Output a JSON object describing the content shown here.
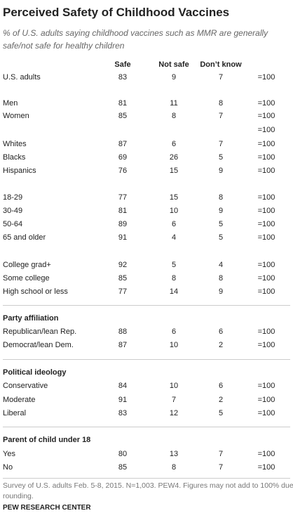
{
  "header": {
    "title": "Perceived Safety of Childhood Vaccines",
    "subtitle": [
      "% of U.S. adults saying childhood vaccines such as MMR are generally",
      "safe/not safe for healthy children"
    ]
  },
  "table": {
    "columns": [
      "Safe",
      "Not safe",
      "Don’t know"
    ],
    "rows": [
      {
        "label": "U.S. adults",
        "cells": [
          83,
          9,
          7
        ],
        "total": "=100"
      },
      {
        "label": "Men",
        "cells": [
          81,
          11,
          8
        ],
        "total": "=100"
      },
      {
        "label": "Women",
        "cells": [
          85,
          8,
          7
        ],
        "total": "=100"
      },
      {
        "total": "=100"
      },
      {
        "label": "Whites",
        "cells": [
          87,
          6,
          7
        ],
        "total": "=100"
      },
      {
        "label": "Blacks",
        "cells": [
          69,
          26,
          5
        ],
        "total": "=100"
      },
      {
        "label": "Hispanics",
        "cells": [
          76,
          15,
          9
        ],
        "total": "=100"
      },
      {
        "label": "18-29",
        "cells": [
          77,
          15,
          8
        ],
        "total": "=100"
      },
      {
        "label": "30-49",
        "cells": [
          81,
          10,
          9
        ],
        "total": "=100"
      },
      {
        "label": "50-64",
        "cells": [
          89,
          6,
          5
        ],
        "total": "=100"
      },
      {
        "label": "65 and older",
        "cells": [
          91,
          4,
          5
        ],
        "total": "=100"
      },
      {
        "label": "College grad+",
        "cells": [
          92,
          5,
          4
        ],
        "total": "=100"
      },
      {
        "label": "Some college",
        "cells": [
          85,
          8,
          8
        ],
        "total": "=100"
      },
      {
        "label": "High school or less",
        "cells": [
          77,
          14,
          9
        ],
        "total": "=100"
      },
      {
        "heading": "Party affiliation"
      },
      {
        "label": "Republican/lean Rep.",
        "cells": [
          88,
          6,
          6
        ],
        "total": "=100"
      },
      {
        "label": "Democrat/lean Dem.",
        "cells": [
          87,
          10,
          2
        ],
        "total": "=100"
      },
      {
        "heading": "Political ideology"
      },
      {
        "label": "Conservative",
        "cells": [
          84,
          10,
          6
        ],
        "total": "=100"
      },
      {
        "label": "Moderate",
        "cells": [
          91,
          7,
          2
        ],
        "total": "=100"
      },
      {
        "label": "Liberal",
        "cells": [
          83,
          12,
          5
        ],
        "total": "=100"
      },
      {
        "heading": "Parent of child under 18"
      },
      {
        "label": "Yes",
        "cells": [
          80,
          13,
          7
        ],
        "total": "=100"
      },
      {
        "label": "No",
        "cells": [
          85,
          8,
          7
        ],
        "total": "=100"
      }
    ]
  },
  "footer": {
    "note": [
      "Survey of U.S. adults Feb. 5-8, 2015. N=1,003. PEW4. Figures may not add to 100% due to",
      "rounding."
    ],
    "source": "PEW RESEARCH CENTER"
  }
}
